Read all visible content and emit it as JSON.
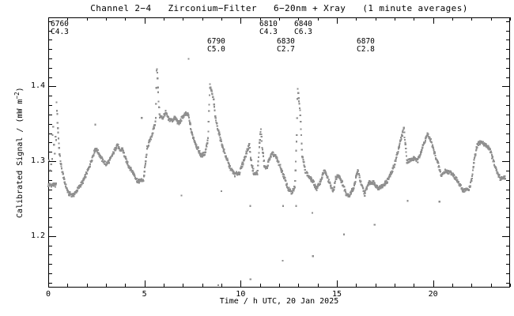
{
  "chart_data": {
    "type": "scatter",
    "title": "Channel 2−4   Zirconium−Filter   6−20nm + Xray   (1 minute averages)",
    "xlabel": "Time / h UTC, 20 Jan 2025",
    "ylabel": "Calibrated Signal / (mW m⁻²)",
    "ylabel_parts": {
      "prefix": "Calibrated Signal / (mW m",
      "sup": "−2",
      "suffix": ")"
    },
    "xlim": [
      0,
      24
    ],
    "ylim": [
      1.132,
      1.4925
    ],
    "xticks": [
      "0",
      "5",
      "10",
      "15",
      "20"
    ],
    "xtick_values": [
      0,
      5,
      10,
      15,
      20
    ],
    "x_minor_step_hours": 1,
    "yticks": [
      "1.2",
      "1.3",
      "1.4"
    ],
    "ytick_values": [
      1.2,
      1.3,
      1.4
    ],
    "y_minor_step": 0.0125,
    "grid": "off",
    "legend": "none",
    "cadence_minutes": 1,
    "point_color": "#8f8f8f",
    "axis_color": "#000000",
    "annotations": [
      {
        "label": "6760",
        "class": "C4.3",
        "t": 0.12,
        "row": 1
      },
      {
        "label": "6790",
        "class": "C5.0",
        "t": 8.26,
        "row": 2
      },
      {
        "label": "6810",
        "class": "C4.3",
        "t": 10.97,
        "row": 1
      },
      {
        "label": "6830",
        "class": "C2.7",
        "t": 11.88,
        "row": 2
      },
      {
        "label": "6840",
        "class": "C6.3",
        "t": 12.78,
        "row": 1
      },
      {
        "label": "6870",
        "class": "C2.8",
        "t": 16.03,
        "row": 2
      }
    ],
    "series_anchors": [
      [
        0.0,
        1.268
      ],
      [
        0.4,
        1.268
      ],
      [
        0.43,
        1.379
      ],
      [
        0.5,
        1.345
      ],
      [
        0.58,
        1.312
      ],
      [
        0.68,
        1.292
      ],
      [
        0.85,
        1.272
      ],
      [
        1.05,
        1.257
      ],
      [
        1.3,
        1.254
      ],
      [
        1.6,
        1.265
      ],
      [
        1.85,
        1.275
      ],
      [
        2.1,
        1.29
      ],
      [
        2.3,
        1.306
      ],
      [
        2.45,
        1.317
      ],
      [
        2.6,
        1.312
      ],
      [
        2.8,
        1.302
      ],
      [
        3.0,
        1.296
      ],
      [
        3.2,
        1.301
      ],
      [
        3.4,
        1.312
      ],
      [
        3.6,
        1.323
      ],
      [
        3.72,
        1.313
      ],
      [
        3.85,
        1.317
      ],
      [
        4.0,
        1.304
      ],
      [
        4.2,
        1.293
      ],
      [
        4.45,
        1.283
      ],
      [
        4.65,
        1.273
      ],
      [
        4.95,
        1.275
      ],
      [
        5.15,
        1.318
      ],
      [
        5.4,
        1.336
      ],
      [
        5.58,
        1.353
      ],
      [
        5.64,
        1.43
      ],
      [
        5.68,
        1.411
      ],
      [
        5.74,
        1.377
      ],
      [
        5.8,
        1.36
      ],
      [
        5.95,
        1.358
      ],
      [
        6.1,
        1.365
      ],
      [
        6.25,
        1.356
      ],
      [
        6.45,
        1.355
      ],
      [
        6.6,
        1.358
      ],
      [
        6.8,
        1.35
      ],
      [
        7.0,
        1.36
      ],
      [
        7.15,
        1.363
      ],
      [
        7.28,
        1.362
      ],
      [
        7.45,
        1.338
      ],
      [
        7.7,
        1.321
      ],
      [
        7.95,
        1.307
      ],
      [
        8.15,
        1.311
      ],
      [
        8.3,
        1.33
      ],
      [
        8.4,
        1.401
      ],
      [
        8.5,
        1.392
      ],
      [
        8.6,
        1.381
      ],
      [
        8.68,
        1.358
      ],
      [
        8.9,
        1.335
      ],
      [
        9.15,
        1.312
      ],
      [
        9.45,
        1.291
      ],
      [
        9.7,
        1.282
      ],
      [
        9.95,
        1.285
      ],
      [
        10.15,
        1.3
      ],
      [
        10.35,
        1.315
      ],
      [
        10.45,
        1.322
      ],
      [
        10.55,
        1.299
      ],
      [
        10.7,
        1.282
      ],
      [
        10.88,
        1.285
      ],
      [
        11.0,
        1.33
      ],
      [
        11.05,
        1.344
      ],
      [
        11.12,
        1.318
      ],
      [
        11.25,
        1.292
      ],
      [
        11.35,
        1.29
      ],
      [
        11.5,
        1.304
      ],
      [
        11.65,
        1.31
      ],
      [
        11.8,
        1.307
      ],
      [
        12.0,
        1.296
      ],
      [
        12.2,
        1.283
      ],
      [
        12.45,
        1.264
      ],
      [
        12.65,
        1.257
      ],
      [
        12.82,
        1.266
      ],
      [
        12.92,
        1.34
      ],
      [
        12.96,
        1.399
      ],
      [
        13.02,
        1.386
      ],
      [
        13.1,
        1.362
      ],
      [
        13.2,
        1.308
      ],
      [
        13.35,
        1.288
      ],
      [
        13.55,
        1.279
      ],
      [
        13.75,
        1.273
      ],
      [
        13.95,
        1.263
      ],
      [
        14.15,
        1.273
      ],
      [
        14.35,
        1.288
      ],
      [
        14.6,
        1.272
      ],
      [
        14.8,
        1.259
      ],
      [
        14.95,
        1.277
      ],
      [
        15.1,
        1.282
      ],
      [
        15.3,
        1.27
      ],
      [
        15.48,
        1.257
      ],
      [
        15.65,
        1.254
      ],
      [
        15.9,
        1.266
      ],
      [
        16.08,
        1.288
      ],
      [
        16.28,
        1.268
      ],
      [
        16.45,
        1.256
      ],
      [
        16.65,
        1.271
      ],
      [
        16.9,
        1.272
      ],
      [
        17.15,
        1.264
      ],
      [
        17.4,
        1.267
      ],
      [
        17.6,
        1.273
      ],
      [
        17.85,
        1.285
      ],
      [
        18.05,
        1.3
      ],
      [
        18.25,
        1.322
      ],
      [
        18.48,
        1.344
      ],
      [
        18.56,
        1.322
      ],
      [
        18.65,
        1.3
      ],
      [
        18.85,
        1.302
      ],
      [
        19.05,
        1.304
      ],
      [
        19.2,
        1.3
      ],
      [
        19.35,
        1.312
      ],
      [
        19.55,
        1.325
      ],
      [
        19.7,
        1.336
      ],
      [
        19.88,
        1.328
      ],
      [
        20.05,
        1.313
      ],
      [
        20.25,
        1.297
      ],
      [
        20.42,
        1.281
      ],
      [
        20.65,
        1.287
      ],
      [
        21.0,
        1.284
      ],
      [
        21.3,
        1.272
      ],
      [
        21.55,
        1.261
      ],
      [
        21.85,
        1.262
      ],
      [
        22.0,
        1.274
      ],
      [
        22.15,
        1.303
      ],
      [
        22.32,
        1.323
      ],
      [
        22.5,
        1.326
      ],
      [
        22.75,
        1.321
      ],
      [
        22.95,
        1.317
      ],
      [
        23.1,
        1.303
      ],
      [
        23.3,
        1.286
      ],
      [
        23.5,
        1.277
      ],
      [
        23.75,
        1.279
      ]
    ],
    "scatter_extra": [
      [
        0.04,
        1.301
      ],
      [
        0.1,
        1.288
      ],
      [
        0.15,
        1.296
      ],
      [
        0.2,
        1.303
      ],
      [
        0.22,
        1.335
      ],
      [
        0.26,
        1.346
      ],
      [
        0.3,
        1.322
      ],
      [
        0.34,
        1.31
      ],
      [
        0.38,
        1.333
      ],
      [
        2.44,
        1.349
      ],
      [
        4.86,
        1.358
      ],
      [
        6.92,
        1.254
      ],
      [
        7.29,
        1.437
      ],
      [
        9.0,
        1.26
      ],
      [
        10.5,
        1.24
      ],
      [
        12.2,
        1.24
      ],
      [
        12.88,
        1.24
      ],
      [
        13.73,
        1.231
      ],
      [
        18.68,
        1.247
      ],
      [
        20.33,
        1.246
      ]
    ],
    "dropouts": [
      [
        8.84,
        1.134
      ],
      [
        10.51,
        1.142
      ],
      [
        12.18,
        1.167
      ],
      [
        13.76,
        1.173
      ],
      [
        15.37,
        1.202
      ],
      [
        16.96,
        1.215
      ]
    ]
  }
}
